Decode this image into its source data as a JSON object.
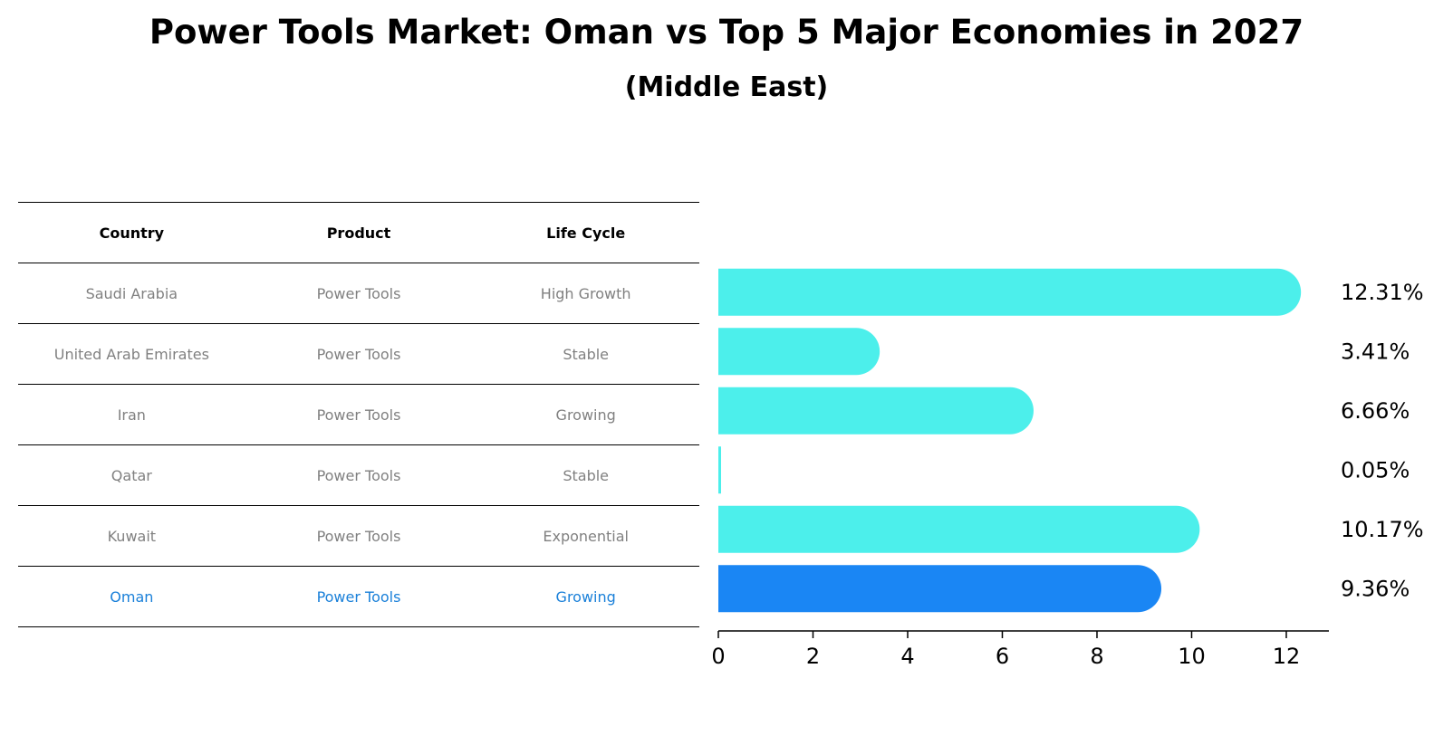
{
  "title": "Power Tools Market: Oman vs Top 5 Major Economies in 2027",
  "subtitle": "(Middle East)",
  "table": {
    "headers": [
      "Country",
      "Product",
      "Life Cycle"
    ],
    "rows": [
      [
        "Saudi Arabia",
        "Power Tools",
        "High Growth"
      ],
      [
        "United Arab Emirates",
        "Power Tools",
        "Stable"
      ],
      [
        "Iran",
        "Power Tools",
        "Growing"
      ],
      [
        "Qatar",
        "Power Tools",
        "Stable"
      ],
      [
        "Kuwait",
        "Power Tools",
        "Exponential"
      ],
      [
        "Oman",
        "Power Tools",
        "Growing"
      ]
    ]
  },
  "colors": {
    "bar": "#4cefeb",
    "highlight_bar": "#1a86f4",
    "highlight_text": "#1a80d9",
    "row_text": "#808080"
  },
  "chart_data": {
    "type": "bar",
    "orientation": "horizontal",
    "categories": [
      "Saudi Arabia",
      "United Arab Emirates",
      "Iran",
      "Qatar",
      "Kuwait",
      "Oman"
    ],
    "values": [
      12.31,
      3.41,
      6.66,
      0.05,
      10.17,
      9.36
    ],
    "value_labels": [
      "12.31%",
      "3.41%",
      "6.66%",
      "0.05%",
      "10.17%",
      "9.36%"
    ],
    "highlight": "Oman",
    "xlim": [
      0,
      12.9
    ],
    "xticks": [
      0,
      2,
      4,
      6,
      8,
      10,
      12
    ],
    "grid": false
  }
}
